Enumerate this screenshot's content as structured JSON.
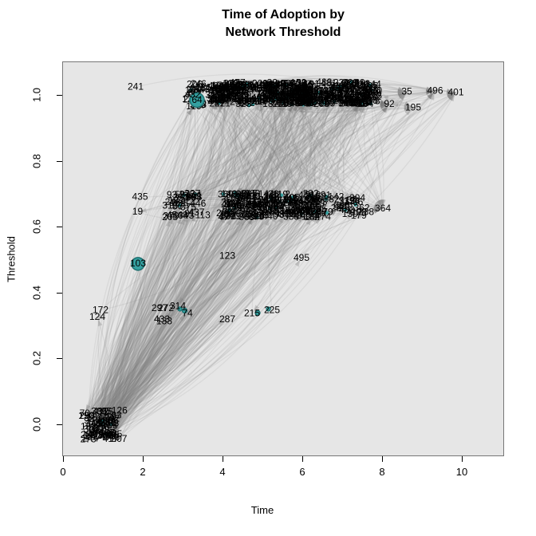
{
  "figure": {
    "title_line1": "Time of Adoption by",
    "title_line2": "Network Threshold",
    "xlabel": "Time",
    "ylabel": "Threshold"
  },
  "chart_data": {
    "type": "scatter",
    "subtype": "network-diffusion-plot",
    "title": "Time of Adoption by Network Threshold",
    "xlabel": "Time",
    "ylabel": "Threshold",
    "x_ticks": [
      0,
      2,
      4,
      6,
      8,
      10
    ],
    "y_ticks": [
      "0.0",
      "0.2",
      "0.4",
      "0.6",
      "0.8",
      "1.0"
    ],
    "xlim": [
      -0.4,
      11.1
    ],
    "ylim": [
      -0.06,
      1.06
    ],
    "grid": false,
    "legend": false,
    "plot_bg": "#E6E6E6",
    "edge_color": "125,125,125",
    "edge_alpha": 0.12,
    "arrow_color": "115,115,115",
    "arrow_alpha": 0.3,
    "label_color": "#000000",
    "highlight_node_fill": "#35A0A0",
    "highlight_node_stroke": "#1C6F6F",
    "approx_edge_count": 1100,
    "labeled_nodes": [
      {
        "label": "241",
        "t": 1.82,
        "thr": 1.025
      },
      {
        "label": "206",
        "t": 3.3,
        "thr": 1.032
      },
      {
        "label": "432",
        "t": 3.25,
        "thr": 1.0
      },
      {
        "label": "64",
        "t": 3.36,
        "thr": 0.985,
        "hl": true,
        "r": 9
      },
      {
        "label": "470",
        "t": 7.8,
        "thr": 1.012
      },
      {
        "label": "92",
        "t": 8.18,
        "thr": 0.972
      },
      {
        "label": "35",
        "t": 8.62,
        "thr": 1.01
      },
      {
        "label": "496",
        "t": 9.33,
        "thr": 1.012
      },
      {
        "label": "401",
        "t": 9.85,
        "thr": 1.008
      },
      {
        "label": "195",
        "t": 8.78,
        "thr": 0.962
      },
      {
        "label": "435",
        "t": 1.93,
        "thr": 0.69
      },
      {
        "label": "19",
        "t": 1.87,
        "thr": 0.645
      },
      {
        "label": "31",
        "t": 2.62,
        "thr": 0.663
      },
      {
        "label": "93",
        "t": 2.73,
        "thr": 0.696
      },
      {
        "label": "53",
        "t": 2.93,
        "thr": 0.696
      },
      {
        "label": "454",
        "t": 2.8,
        "thr": 0.634
      },
      {
        "label": "48",
        "t": 3.0,
        "thr": 0.634
      },
      {
        "label": "456",
        "t": 6.1,
        "thr": 0.695
      },
      {
        "label": "32",
        "t": 7.26,
        "thr": 0.68
      },
      {
        "label": "204",
        "t": 7.38,
        "thr": 0.686
      },
      {
        "label": "412",
        "t": 7.3,
        "thr": 0.644
      },
      {
        "label": "98",
        "t": 7.48,
        "thr": 0.644
      },
      {
        "label": "238",
        "t": 7.6,
        "thr": 0.644
      },
      {
        "label": "364",
        "t": 8.02,
        "thr": 0.655
      },
      {
        "label": "103",
        "t": 1.88,
        "thr": 0.487,
        "hl": true,
        "r": 8
      },
      {
        "label": "123",
        "t": 4.12,
        "thr": 0.51
      },
      {
        "label": "495",
        "t": 5.98,
        "thr": 0.505
      },
      {
        "label": "124",
        "t": 0.86,
        "thr": 0.325
      },
      {
        "label": "172",
        "t": 0.94,
        "thr": 0.346
      },
      {
        "label": "297",
        "t": 2.42,
        "thr": 0.352
      },
      {
        "label": "272",
        "t": 2.58,
        "thr": 0.352
      },
      {
        "label": "433",
        "t": 2.48,
        "thr": 0.318
      },
      {
        "label": "133",
        "t": 2.54,
        "thr": 0.312
      },
      {
        "label": "314",
        "t": 2.88,
        "thr": 0.358
      },
      {
        "label": "74",
        "t": 3.12,
        "thr": 0.336
      },
      {
        "label": "287",
        "t": 4.12,
        "thr": 0.318
      },
      {
        "label": "215",
        "t": 4.74,
        "thr": 0.336
      },
      {
        "label": "225",
        "t": 5.24,
        "thr": 0.346
      }
    ],
    "highlight_dots": [
      {
        "t": 3.05,
        "thr": 0.345,
        "r": 3
      },
      {
        "t": 4.88,
        "thr": 0.338,
        "r": 3
      },
      {
        "t": 5.15,
        "thr": 0.35,
        "r": 2.5
      },
      {
        "t": 2.93,
        "thr": 0.35,
        "r": 2.5
      }
    ],
    "dense_clusters": [
      {
        "name": "top-small",
        "t": [
          3.18,
          3.52
        ],
        "thr": [
          0.955,
          1.045
        ],
        "count": 14
      },
      {
        "name": "top-a",
        "t": [
          3.74,
          4.62
        ],
        "thr": [
          0.972,
          1.038
        ],
        "count": 80
      },
      {
        "name": "top-b",
        "t": [
          4.78,
          6.28
        ],
        "thr": [
          0.972,
          1.038
        ],
        "count": 130
      },
      {
        "name": "top-c",
        "t": [
          6.4,
          7.82
        ],
        "thr": [
          0.972,
          1.038
        ],
        "count": 100
      },
      {
        "name": "mid-left",
        "t": [
          2.62,
          3.55
        ],
        "thr": [
          0.628,
          0.7
        ],
        "count": 22
      },
      {
        "name": "mid-a",
        "t": [
          4.0,
          5.0
        ],
        "thr": [
          0.628,
          0.7
        ],
        "count": 60
      },
      {
        "name": "mid-b",
        "t": [
          5.08,
          6.62
        ],
        "thr": [
          0.628,
          0.7
        ],
        "count": 85
      },
      {
        "name": "mid-right",
        "t": [
          6.7,
          7.6
        ],
        "thr": [
          0.63,
          0.695
        ],
        "count": 14
      },
      {
        "name": "bottom",
        "t": [
          0.52,
          1.42
        ],
        "thr": [
          -0.048,
          0.042
        ],
        "count": 48
      }
    ]
  }
}
